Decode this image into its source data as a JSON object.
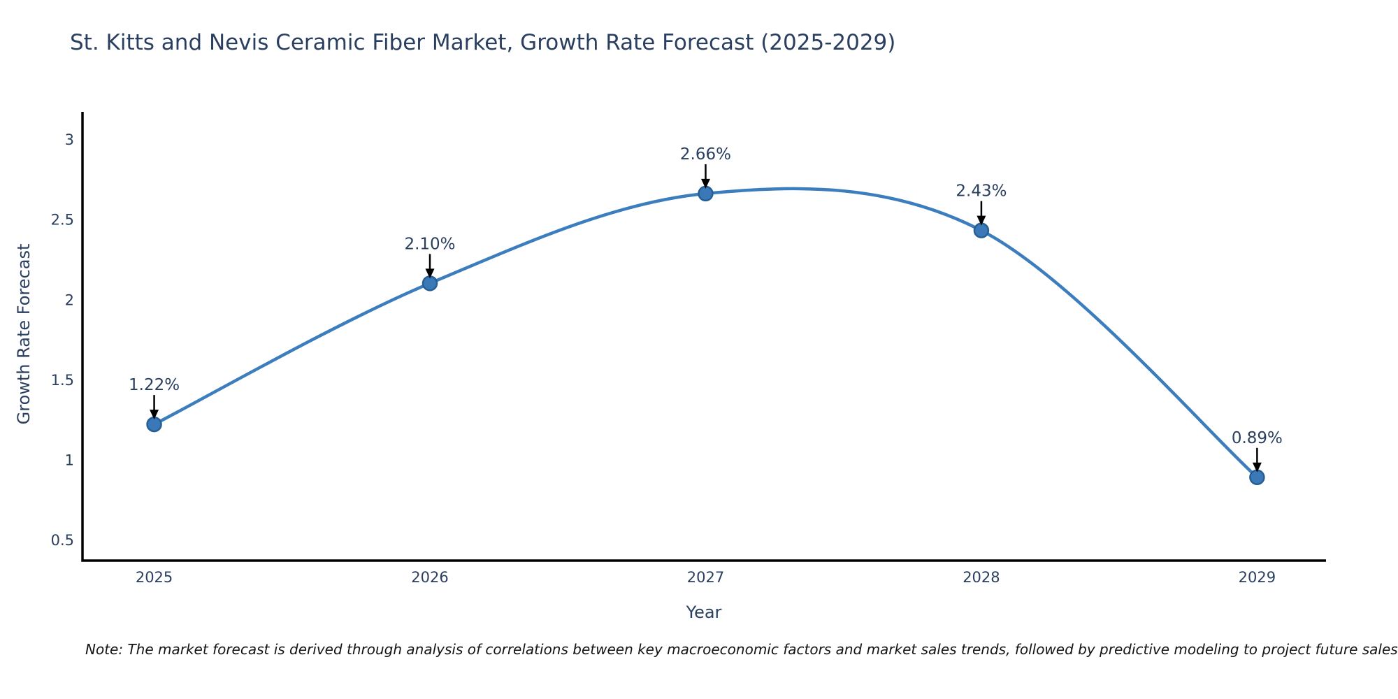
{
  "chart_data": {
    "type": "line",
    "title": "St. Kitts and Nevis Ceramic Fiber Market, Growth Rate Forecast (2025-2029)",
    "xlabel": "Year",
    "ylabel": "Growth Rate Forecast",
    "x": [
      2025,
      2026,
      2027,
      2028,
      2029
    ],
    "series": [
      {
        "name": "Growth Rate Forecast",
        "values": [
          1.22,
          2.1,
          2.66,
          2.43,
          0.89
        ]
      }
    ],
    "point_labels": [
      "1.22%",
      "2.10%",
      "2.66%",
      "2.43%",
      "0.89%"
    ],
    "x_tick_labels": [
      "2025",
      "2026",
      "2027",
      "2028",
      "2029"
    ],
    "y_tick_labels": [
      "0.5",
      "1",
      "1.5",
      "2",
      "2.5",
      "3"
    ],
    "y_tick_values": [
      0.5,
      1,
      1.5,
      2,
      2.5,
      3
    ],
    "xlim": [
      2024.74,
      2029.25
    ],
    "ylim": [
      0.37,
      3.17
    ],
    "line_shape": "spline",
    "grid": false,
    "legend_position": "none",
    "colors": {
      "line": "#3c7dbd",
      "marker_fill": "#3a78b8",
      "marker_edge": "#265f94",
      "axis": "#000000",
      "tick_text": "#2a3f5f",
      "annotation_text": "#2a3f5f",
      "arrow": "#000000"
    }
  },
  "footnote": "Note: The market forecast is derived through analysis of correlations between key macroeconomic factors and market sales trends, followed by predictive modeling to project future sales"
}
